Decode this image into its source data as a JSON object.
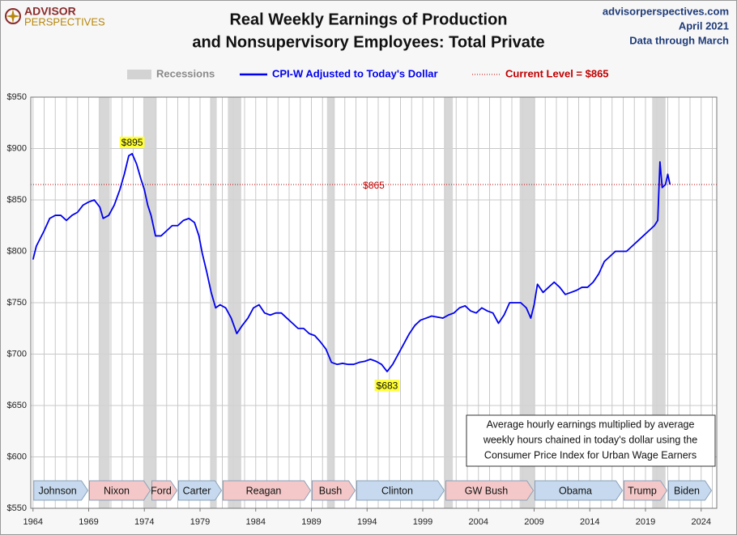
{
  "chart_data": {
    "type": "line",
    "title": [
      "Real Weekly Earnings of Production",
      "and Nonsupervisory Employees: Total Private"
    ],
    "logo": [
      "ADVISOR",
      "PERSPECTIVES"
    ],
    "source": [
      "advisorperspectives.com",
      "April 2021",
      "Data through March"
    ],
    "note": [
      "Average hourly earnings multiplied by average",
      "weekly hours chained in today's dollar using the",
      "Consumer Price Index for Urban Wage Earners"
    ],
    "recession_label": "Recessions",
    "recession_color": "#d3d3d3",
    "recessions": [
      [
        1969.9,
        1970.9
      ],
      [
        1973.9,
        1975.1
      ],
      [
        1979.9,
        1980.5
      ],
      [
        1981.5,
        1982.7
      ],
      [
        1990.4,
        1991.1
      ],
      [
        2000.9,
        2001.7
      ],
      [
        2007.7,
        2009.1
      ],
      [
        2019.6,
        2020.8
      ]
    ],
    "current_level": {
      "label": "Current Level = $865",
      "value": 865,
      "value_label": "$865",
      "color": "#c00000"
    },
    "annotations": [
      {
        "label": "$895",
        "x": 1972.9,
        "value": 895
      },
      {
        "label": "$683",
        "x": 1995.8,
        "value": 683
      }
    ],
    "x": [
      1964.0,
      1964.3,
      1965.0,
      1965.5,
      1966.0,
      1966.5,
      1967.0,
      1967.5,
      1968.0,
      1968.5,
      1969.0,
      1969.5,
      1970.0,
      1970.3,
      1970.8,
      1971.3,
      1971.8,
      1972.2,
      1972.6,
      1972.9,
      1973.3,
      1973.7,
      1974.0,
      1974.3,
      1974.6,
      1975.0,
      1975.5,
      1976.0,
      1976.5,
      1977.0,
      1977.5,
      1978.0,
      1978.5,
      1978.9,
      1979.2,
      1979.6,
      1980.0,
      1980.4,
      1980.8,
      1981.3,
      1981.8,
      1982.3,
      1982.8,
      1983.3,
      1983.8,
      1984.3,
      1984.8,
      1985.3,
      1985.8,
      1986.3,
      1986.8,
      1987.3,
      1987.8,
      1988.3,
      1988.8,
      1989.3,
      1989.8,
      1990.3,
      1990.8,
      1991.3,
      1991.8,
      1992.3,
      1992.8,
      1993.3,
      1993.8,
      1994.3,
      1994.8,
      1995.3,
      1995.8,
      1996.3,
      1996.8,
      1997.3,
      1997.8,
      1998.3,
      1998.8,
      1999.3,
      1999.8,
      2000.3,
      2000.8,
      2001.3,
      2001.8,
      2002.3,
      2002.8,
      2003.3,
      2003.8,
      2004.3,
      2004.8,
      2005.3,
      2005.8,
      2006.3,
      2006.8,
      2007.3,
      2007.8,
      2008.3,
      2008.7,
      2009.0,
      2009.3,
      2009.8,
      2010.3,
      2010.8,
      2011.3,
      2011.8,
      2012.3,
      2012.8,
      2013.3,
      2013.8,
      2014.3,
      2014.8,
      2015.3,
      2015.8,
      2016.3,
      2016.8,
      2017.3,
      2017.8,
      2018.3,
      2018.8,
      2019.3,
      2019.8,
      2020.1,
      2020.3,
      2020.5,
      2020.8,
      2021.0,
      2021.2
    ],
    "series": [
      {
        "name": "CPI-W Adjusted to Today's Dollar",
        "color": "#0000ee",
        "values": [
          792,
          805,
          820,
          832,
          835,
          835,
          830,
          835,
          838,
          845,
          848,
          850,
          843,
          832,
          835,
          845,
          860,
          875,
          893,
          895,
          885,
          870,
          860,
          845,
          835,
          815,
          815,
          820,
          825,
          825,
          830,
          832,
          828,
          815,
          798,
          780,
          760,
          745,
          748,
          745,
          735,
          720,
          728,
          735,
          745,
          748,
          740,
          738,
          740,
          740,
          735,
          730,
          725,
          725,
          720,
          718,
          712,
          705,
          692,
          690,
          691,
          690,
          690,
          692,
          693,
          695,
          693,
          690,
          683,
          690,
          700,
          710,
          720,
          728,
          733,
          735,
          737,
          736,
          735,
          738,
          740,
          745,
          747,
          742,
          740,
          745,
          742,
          740,
          730,
          738,
          750,
          750,
          750,
          745,
          735,
          748,
          768,
          760,
          765,
          770,
          765,
          758,
          760,
          762,
          765,
          765,
          770,
          778,
          790,
          795,
          800,
          800,
          800,
          805,
          810,
          815,
          820,
          825,
          830,
          887,
          862,
          865,
          875,
          865
        ]
      }
    ],
    "xlim": [
      1963.8,
      2025.4
    ],
    "xticks": [
      1964,
      1969,
      1974,
      1979,
      1984,
      1989,
      1994,
      1999,
      2004,
      2009,
      2014,
      2019,
      2024
    ],
    "minor_xticks": [
      1964,
      1965,
      1966,
      1967,
      1968,
      1969,
      1970,
      1971,
      1972,
      1973,
      1974,
      1975,
      1976,
      1977,
      1978,
      1979,
      1980,
      1981,
      1982,
      1983,
      1984,
      1985,
      1986,
      1987,
      1988,
      1989,
      1990,
      1991,
      1992,
      1993,
      1994,
      1995,
      1996,
      1997,
      1998,
      1999,
      2000,
      2001,
      2002,
      2003,
      2004,
      2005,
      2006,
      2007,
      2008,
      2009,
      2010,
      2011,
      2012,
      2013,
      2014,
      2015,
      2016,
      2017,
      2018,
      2019,
      2020,
      2021,
      2022,
      2023,
      2024,
      2025
    ],
    "ylim": [
      550,
      950
    ],
    "yticks": [
      {
        "value": 550,
        "label": "$550"
      },
      {
        "value": 600,
        "label": "$600"
      },
      {
        "value": 650,
        "label": "$650"
      },
      {
        "value": 700,
        "label": "$700"
      },
      {
        "value": 750,
        "label": "$750"
      },
      {
        "value": 800,
        "label": "$800"
      },
      {
        "value": 850,
        "label": "$850"
      },
      {
        "value": 900,
        "label": "$900"
      },
      {
        "value": 950,
        "label": "$950"
      }
    ],
    "grid": true,
    "presidents": [
      {
        "name": "Johnson",
        "start": 1964,
        "end": 1969,
        "color": "#c6d9ee"
      },
      {
        "name": "Nixon",
        "start": 1969,
        "end": 1974.6,
        "color": "#f4c8c8"
      },
      {
        "name": "Ford",
        "start": 1974.6,
        "end": 1977,
        "color": "#f4c8c8"
      },
      {
        "name": "Carter",
        "start": 1977,
        "end": 1981,
        "color": "#c6d9ee"
      },
      {
        "name": "Reagan",
        "start": 1981,
        "end": 1989,
        "color": "#f4c8c8"
      },
      {
        "name": "Bush",
        "start": 1989,
        "end": 1993,
        "color": "#f4c8c8"
      },
      {
        "name": "Clinton",
        "start": 1993,
        "end": 2001,
        "color": "#c6d9ee"
      },
      {
        "name": "GW Bush",
        "start": 2001,
        "end": 2009,
        "color": "#f4c8c8"
      },
      {
        "name": "Obama",
        "start": 2009,
        "end": 2017,
        "color": "#c6d9ee"
      },
      {
        "name": "Trump",
        "start": 2017,
        "end": 2021,
        "color": "#f4c8c8"
      },
      {
        "name": "Biden",
        "start": 2021,
        "end": 2025,
        "color": "#c6d9ee"
      }
    ]
  }
}
